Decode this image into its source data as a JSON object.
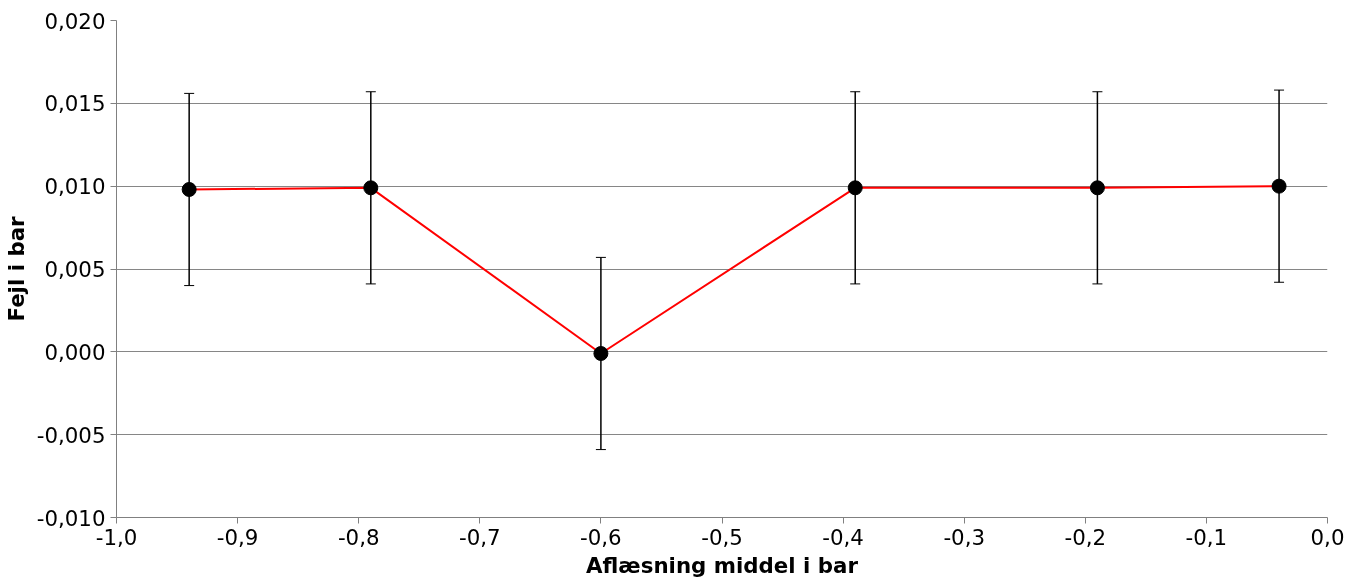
{
  "chart_data": {
    "type": "line",
    "xlabel": "Aflæsning middel i bar",
    "ylabel": "Fejl i bar",
    "x": [
      -0.94,
      -0.79,
      -0.6,
      -0.39,
      -0.19,
      -0.04
    ],
    "series": [
      {
        "color": "#ff0000",
        "values": [
          0.0098,
          0.0099,
          -0.0001,
          0.0099,
          0.0099,
          0.01
        ],
        "errors": [
          0.0058,
          0.0058,
          0.0058,
          0.0058,
          0.0058,
          0.0058
        ]
      }
    ],
    "marker": "circle",
    "line_style": "solid",
    "grid": "y",
    "xlim": [
      -1.0,
      0.0
    ],
    "xticks": [
      {
        "value": -1.0,
        "label": "-1,0"
      },
      {
        "value": -0.9,
        "label": "-0,9"
      },
      {
        "value": -0.8,
        "label": "-0,8"
      },
      {
        "value": -0.7,
        "label": "-0,7"
      },
      {
        "value": -0.6,
        "label": "-0,6"
      },
      {
        "value": -0.5,
        "label": "-0,5"
      },
      {
        "value": -0.4,
        "label": "-0,4"
      },
      {
        "value": -0.3,
        "label": "-0,3"
      },
      {
        "value": -0.2,
        "label": "-0,2"
      },
      {
        "value": -0.1,
        "label": "-0,1"
      },
      {
        "value": 0.0,
        "label": "0,0"
      }
    ],
    "ylim": [
      -0.01,
      0.02
    ],
    "yticks": [
      {
        "value": -0.01,
        "label": "-0,010"
      },
      {
        "value": -0.005,
        "label": "-0,005"
      },
      {
        "value": 0.0,
        "label": "0,000"
      },
      {
        "value": 0.005,
        "label": "0,005"
      },
      {
        "value": 0.01,
        "label": "0,010"
      },
      {
        "value": 0.015,
        "label": "0,015"
      },
      {
        "value": 0.02,
        "label": "0,020"
      }
    ]
  }
}
